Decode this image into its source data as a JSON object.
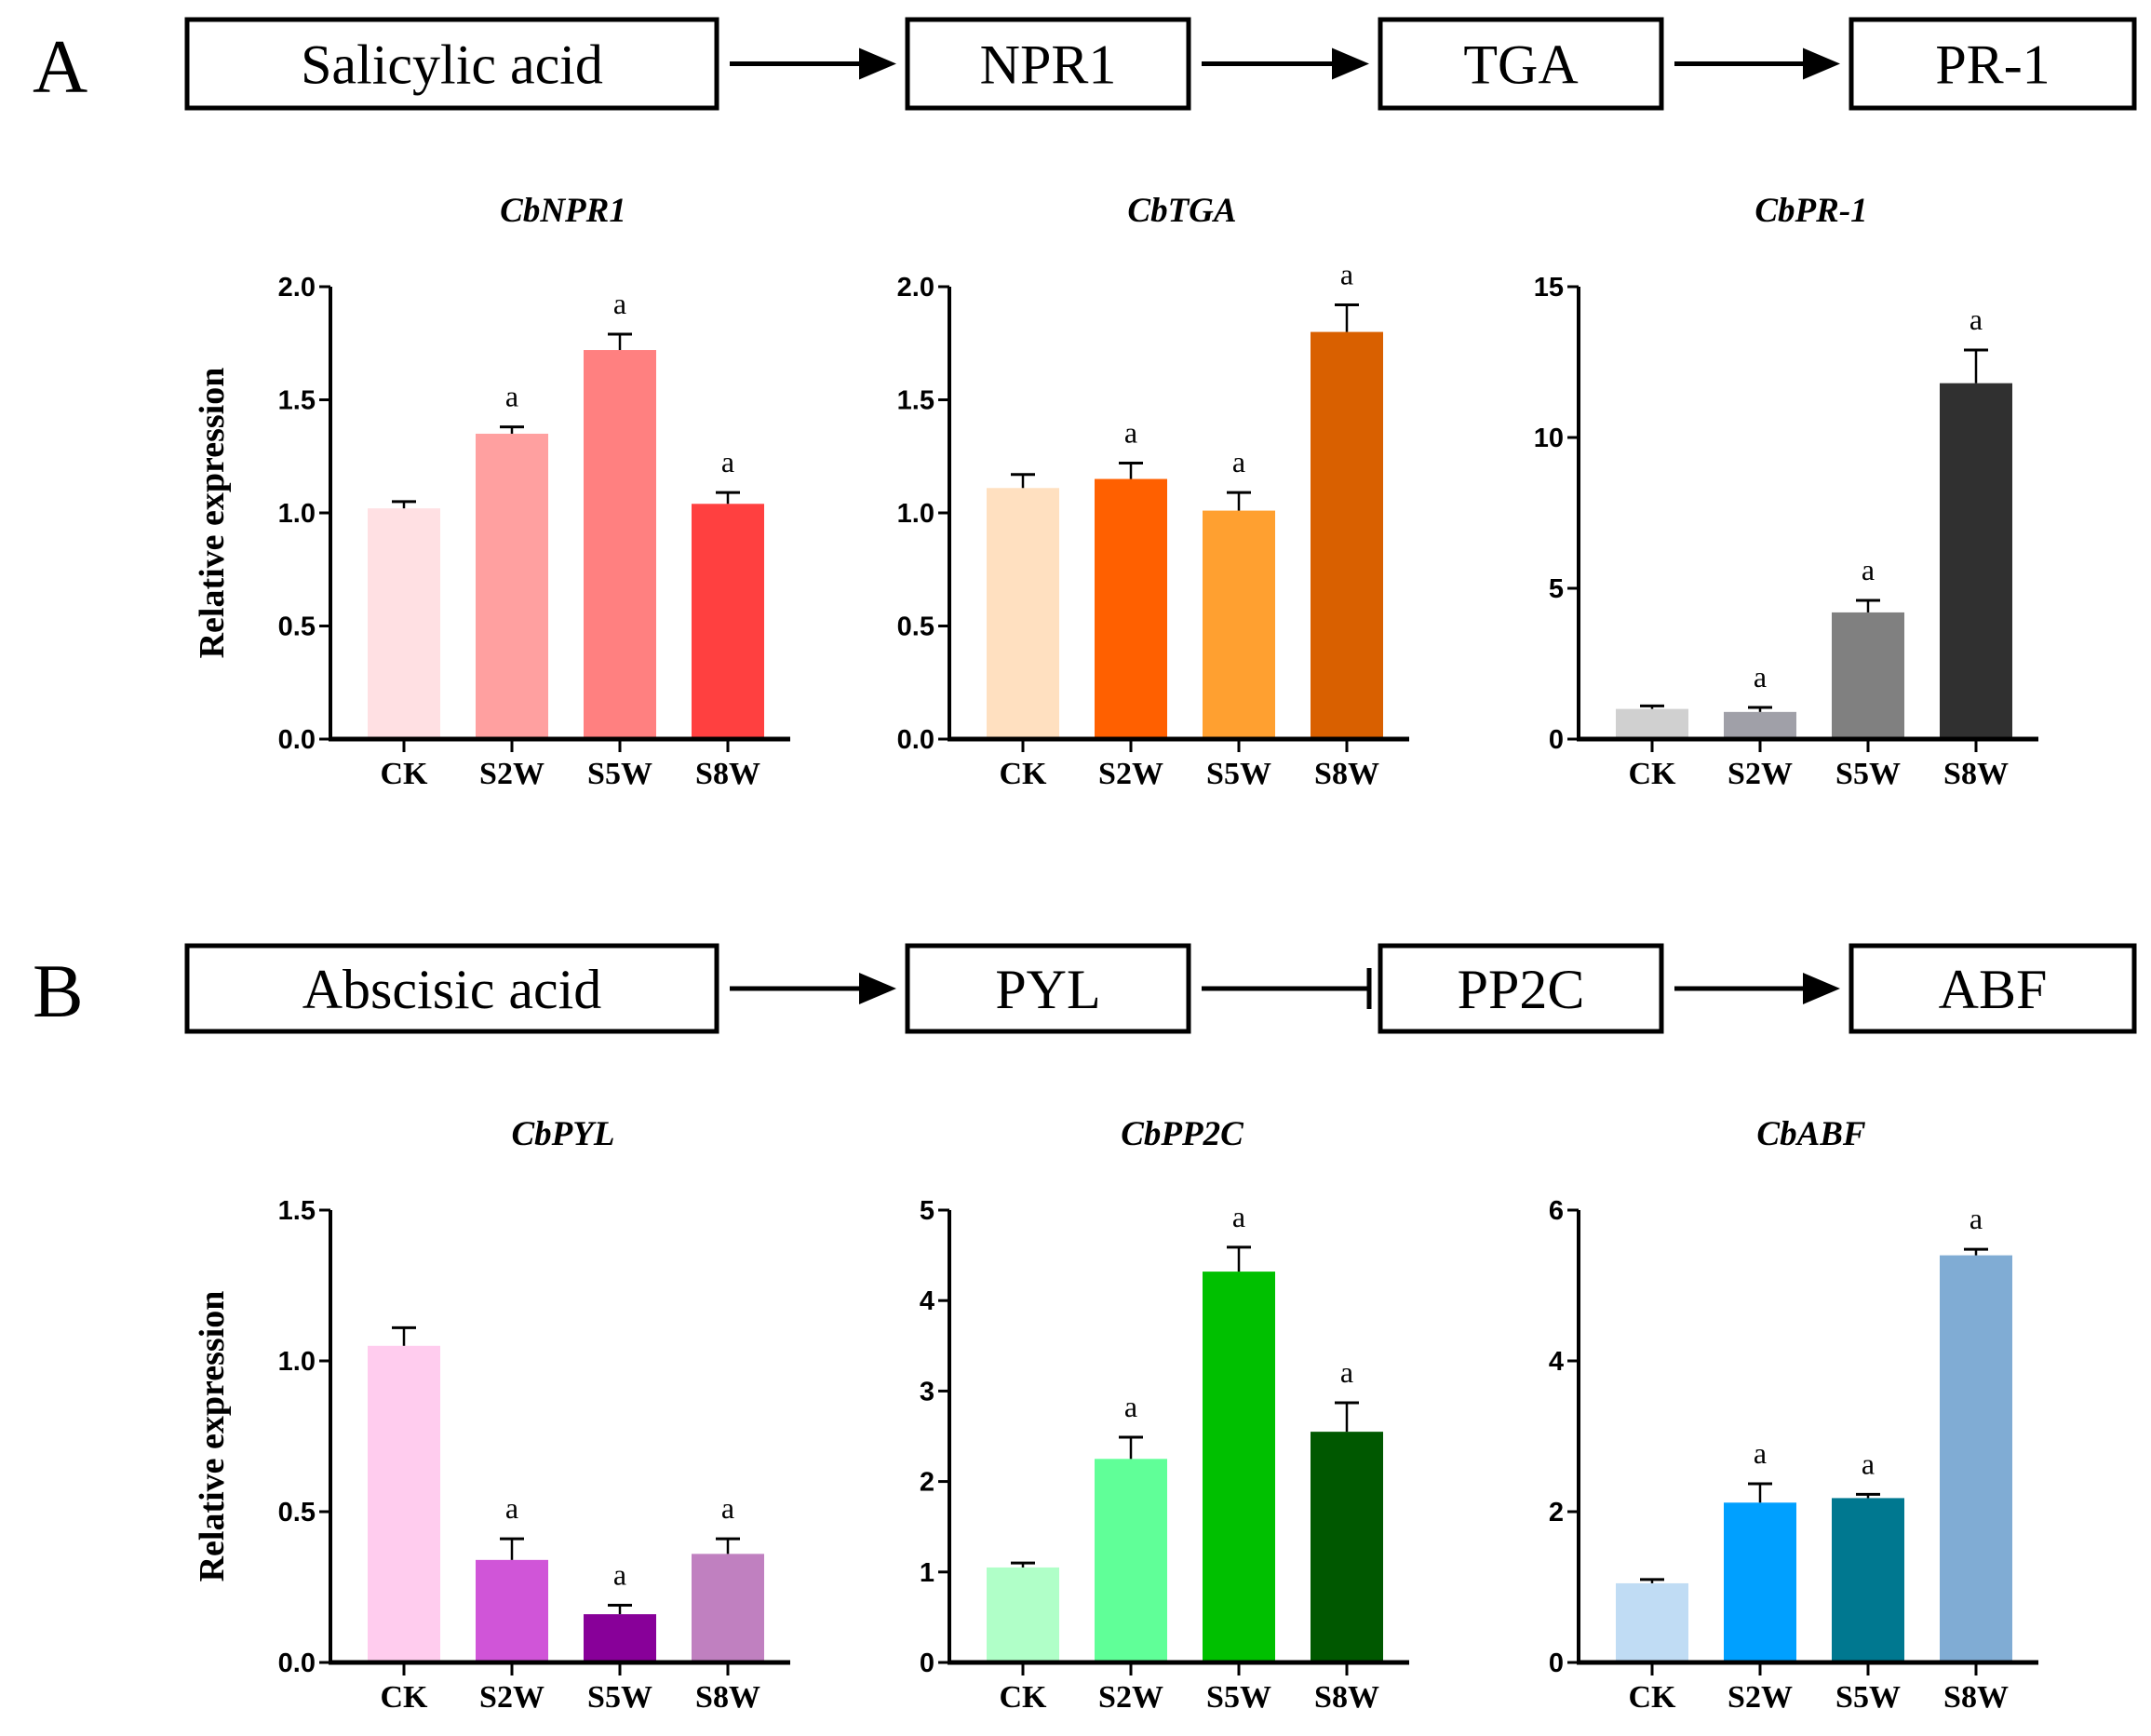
{
  "panels": [
    {
      "letter": "A",
      "pathway": [
        "Salicylic acid",
        "NPR1",
        "TGA",
        "PR-1"
      ],
      "links": [
        "activate",
        "activate",
        "activate"
      ]
    },
    {
      "letter": "B",
      "pathway": [
        "Abscisic acid",
        "PYL",
        "PP2C",
        "ABF"
      ],
      "links": [
        "activate",
        "inhibit",
        "activate"
      ]
    }
  ],
  "chart_data": [
    {
      "type": "bar",
      "title": "CbNPR1",
      "ylabel": "Relative expression",
      "categories": [
        "CK",
        "S2W",
        "S5W",
        "S8W"
      ],
      "values": [
        1.02,
        1.35,
        1.72,
        1.04
      ],
      "errors": [
        0.03,
        0.03,
        0.07,
        0.05
      ],
      "significance": [
        "",
        "a",
        "a",
        "a"
      ],
      "ylim": [
        0,
        2
      ],
      "yticks": [
        0,
        0.5,
        1,
        1.5,
        2
      ],
      "ytick_labels": [
        "0.0",
        "0.5",
        "1.0",
        "1.5",
        "2.0"
      ],
      "colors": [
        "#FFE0E3",
        "#FFA0A0",
        "#FF8080",
        "#FF4040"
      ]
    },
    {
      "type": "bar",
      "title": "CbTGA",
      "ylabel": "",
      "categories": [
        "CK",
        "S2W",
        "S5W",
        "S8W"
      ],
      "values": [
        1.11,
        1.15,
        1.01,
        1.8
      ],
      "errors": [
        0.06,
        0.07,
        0.08,
        0.12
      ],
      "significance": [
        "",
        "a",
        "a",
        "a"
      ],
      "ylim": [
        0,
        2
      ],
      "yticks": [
        0,
        0.5,
        1,
        1.5,
        2
      ],
      "ytick_labels": [
        "0.0",
        "0.5",
        "1.0",
        "1.5",
        "2.0"
      ],
      "colors": [
        "#FFE0C0",
        "#FF6000",
        "#FFA030",
        "#D96000"
      ]
    },
    {
      "type": "bar",
      "title": "CbPR-1",
      "ylabel": "",
      "categories": [
        "CK",
        "S2W",
        "S5W",
        "S8W"
      ],
      "values": [
        1.0,
        0.9,
        4.2,
        11.8
      ],
      "errors": [
        0.1,
        0.15,
        0.4,
        1.1
      ],
      "significance": [
        "",
        "a",
        "a",
        "a"
      ],
      "ylim": [
        0,
        15
      ],
      "yticks": [
        0,
        5,
        10,
        15
      ],
      "ytick_labels": [
        "0",
        "5",
        "10",
        "15"
      ],
      "colors": [
        "#D0D0D0",
        "#A0A0A8",
        "#808080",
        "#303030"
      ]
    },
    {
      "type": "bar",
      "title": "CbPYL",
      "ylabel": "Relative expression",
      "categories": [
        "CK",
        "S2W",
        "S5W",
        "S8W"
      ],
      "values": [
        1.05,
        0.34,
        0.16,
        0.36
      ],
      "errors": [
        0.06,
        0.07,
        0.03,
        0.05
      ],
      "significance": [
        "",
        "a",
        "a",
        "a"
      ],
      "ylim": [
        0,
        1.5
      ],
      "yticks": [
        0,
        0.5,
        1,
        1.5
      ],
      "ytick_labels": [
        "0.0",
        "0.5",
        "1.0",
        "1.5"
      ],
      "colors": [
        "#FFCCEE",
        "#D055D8",
        "#880099",
        "#C080C0"
      ]
    },
    {
      "type": "bar",
      "title": "CbPP2C",
      "ylabel": "",
      "categories": [
        "CK",
        "S2W",
        "S5W",
        "S8W"
      ],
      "values": [
        1.05,
        2.25,
        4.32,
        2.55
      ],
      "errors": [
        0.05,
        0.24,
        0.27,
        0.32
      ],
      "significance": [
        "",
        "a",
        "a",
        "a"
      ],
      "ylim": [
        0,
        5
      ],
      "yticks": [
        0,
        1,
        2,
        3,
        4,
        5
      ],
      "ytick_labels": [
        "0",
        "1",
        "2",
        "3",
        "4",
        "5"
      ],
      "colors": [
        "#B0FFC8",
        "#60FF98",
        "#00C000",
        "#005800"
      ]
    },
    {
      "type": "bar",
      "title": "CbABF",
      "ylabel": "",
      "categories": [
        "CK",
        "S2W",
        "S5W",
        "S8W"
      ],
      "values": [
        1.05,
        2.12,
        2.18,
        5.4
      ],
      "errors": [
        0.05,
        0.25,
        0.05,
        0.08
      ],
      "significance": [
        "",
        "a",
        "a",
        "a"
      ],
      "ylim": [
        0,
        6
      ],
      "yticks": [
        0,
        2,
        4,
        6
      ],
      "ytick_labels": [
        "0",
        "2",
        "4",
        "6"
      ],
      "colors": [
        "#C0DCF4",
        "#00A0FF",
        "#007890",
        "#80ACD4"
      ]
    }
  ]
}
